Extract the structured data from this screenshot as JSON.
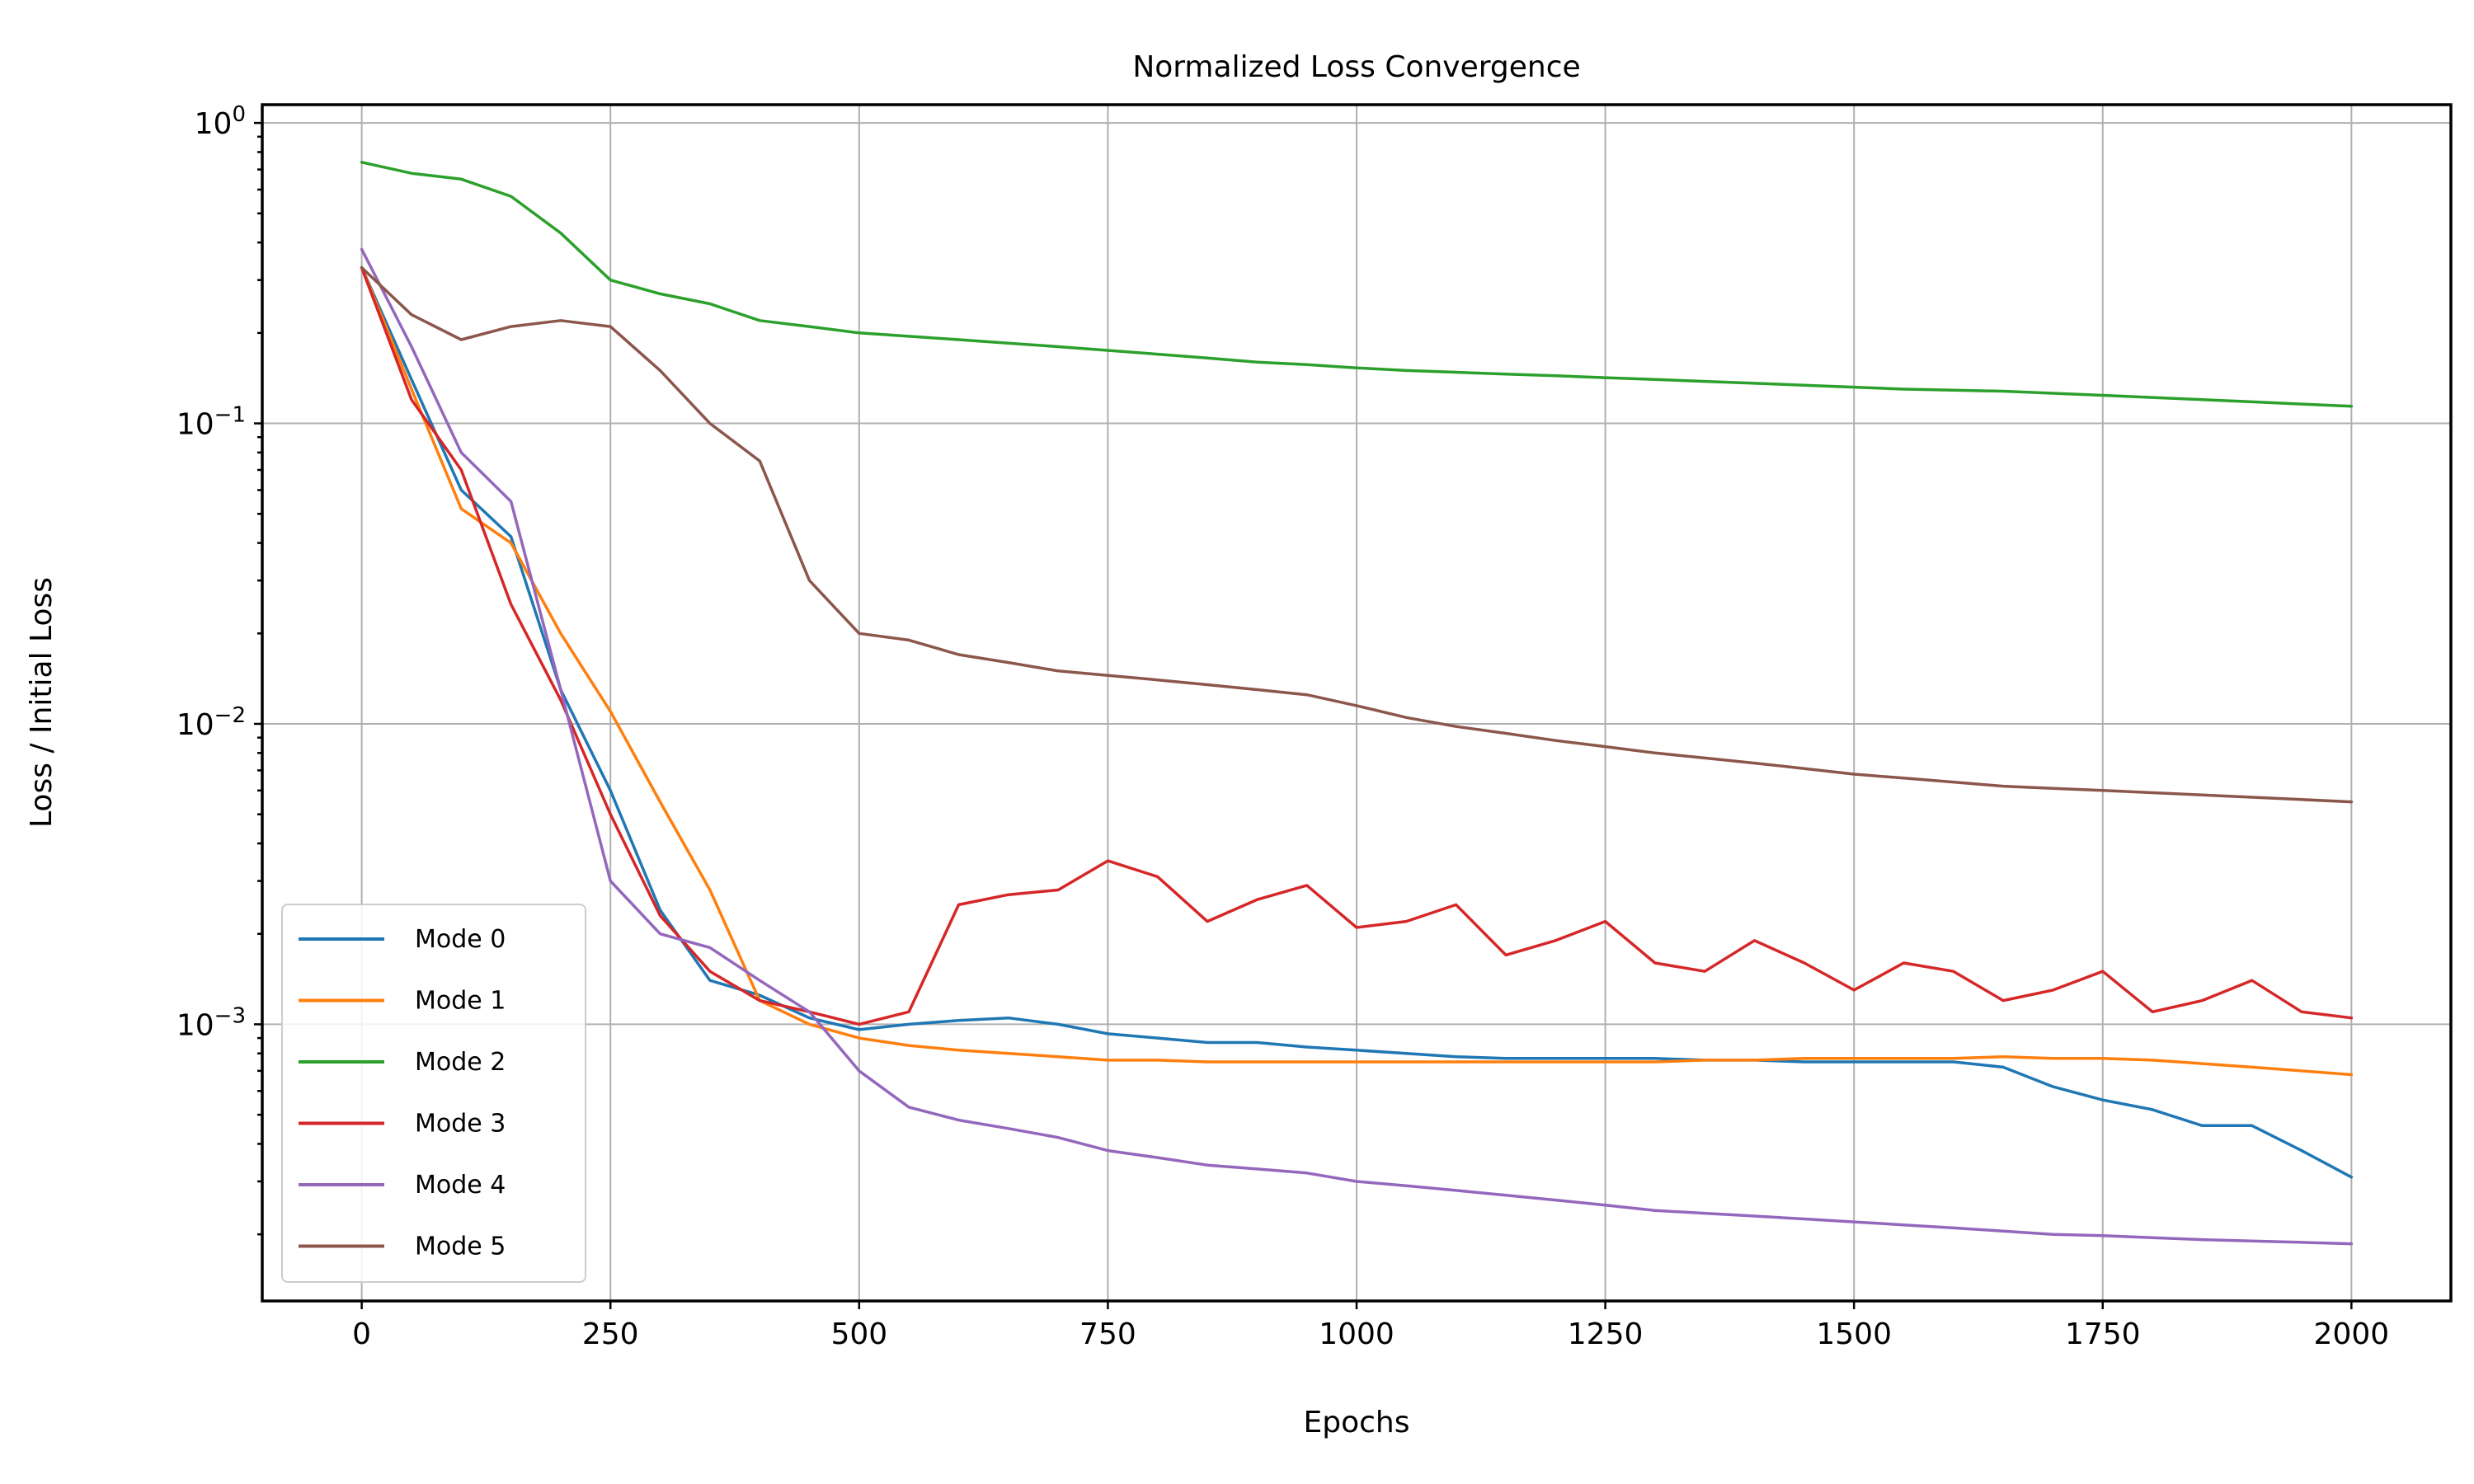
{
  "chart_data": {
    "type": "line",
    "title": "Normalized Loss Convergence",
    "xlabel": "Epochs",
    "ylabel": "Loss / Initial Loss",
    "xlim": [
      -100,
      2100
    ],
    "ylim": [
      0.00012,
      1.15
    ],
    "xscale": "linear",
    "yscale": "log",
    "grid": true,
    "legend_position": "lower-left",
    "x_ticks": [
      0,
      250,
      500,
      750,
      1000,
      1250,
      1500,
      1750,
      2000
    ],
    "x_tick_labels": [
      "0",
      "250",
      "500",
      "750",
      "1000",
      "1250",
      "1500",
      "1750",
      "2000"
    ],
    "y_ticks": [
      {
        "value": 1,
        "base": "10",
        "exp": "0"
      },
      {
        "value": 0.1,
        "base": "10",
        "exp": "−1"
      },
      {
        "value": 0.01,
        "base": "10",
        "exp": "−2"
      },
      {
        "value": 0.001,
        "base": "10",
        "exp": "−3"
      }
    ],
    "x": [
      0,
      50,
      100,
      150,
      200,
      250,
      300,
      350,
      400,
      450,
      500,
      550,
      600,
      650,
      700,
      750,
      800,
      850,
      900,
      950,
      1000,
      1050,
      1100,
      1150,
      1200,
      1250,
      1300,
      1350,
      1400,
      1450,
      1500,
      1550,
      1600,
      1650,
      1700,
      1750,
      1800,
      1850,
      1900,
      1950,
      2000
    ],
    "series": [
      {
        "name": "Mode 0",
        "color": "#1f77b4",
        "values": [
          0.33,
          0.14,
          0.06,
          0.042,
          0.013,
          0.006,
          0.0024,
          0.0014,
          0.00125,
          0.00105,
          0.00096,
          0.001,
          0.00103,
          0.00105,
          0.001,
          0.00093,
          0.0009,
          0.00087,
          0.00087,
          0.00084,
          0.00082,
          0.0008,
          0.00078,
          0.00077,
          0.00077,
          0.00077,
          0.00077,
          0.00076,
          0.00076,
          0.00075,
          0.00075,
          0.00075,
          0.00075,
          0.00072,
          0.00062,
          0.00056,
          0.00052,
          0.00046,
          0.00046,
          0.00038,
          0.00031
        ]
      },
      {
        "name": "Mode 1",
        "color": "#ff7f0e",
        "values": [
          0.33,
          0.13,
          0.052,
          0.04,
          0.02,
          0.011,
          0.0055,
          0.0028,
          0.0012,
          0.001,
          0.0009,
          0.00085,
          0.00082,
          0.0008,
          0.00078,
          0.00076,
          0.00076,
          0.00075,
          0.00075,
          0.00075,
          0.00075,
          0.00075,
          0.00075,
          0.00075,
          0.00075,
          0.00075,
          0.00075,
          0.00076,
          0.00076,
          0.00077,
          0.00077,
          0.00077,
          0.00077,
          0.00078,
          0.00077,
          0.00077,
          0.00076,
          0.00074,
          0.00072,
          0.0007,
          0.00068
        ]
      },
      {
        "name": "Mode 2",
        "color": "#2ca02c",
        "values": [
          0.74,
          0.68,
          0.65,
          0.57,
          0.43,
          0.3,
          0.27,
          0.25,
          0.22,
          0.21,
          0.2,
          0.195,
          0.19,
          0.185,
          0.18,
          0.175,
          0.17,
          0.165,
          0.16,
          0.157,
          0.153,
          0.15,
          0.148,
          0.146,
          0.144,
          0.142,
          0.14,
          0.138,
          0.136,
          0.134,
          0.132,
          0.13,
          0.129,
          0.128,
          0.126,
          0.124,
          0.122,
          0.12,
          0.118,
          0.116,
          0.114
        ]
      },
      {
        "name": "Mode 3",
        "color": "#d62728",
        "values": [
          0.33,
          0.12,
          0.07,
          0.025,
          0.012,
          0.005,
          0.0023,
          0.0015,
          0.0012,
          0.0011,
          0.001,
          0.0011,
          0.0025,
          0.0027,
          0.0028,
          0.0035,
          0.0031,
          0.0022,
          0.0026,
          0.0029,
          0.0021,
          0.0022,
          0.0025,
          0.0017,
          0.0019,
          0.0022,
          0.0016,
          0.0015,
          0.0019,
          0.0016,
          0.0013,
          0.0016,
          0.0015,
          0.0012,
          0.0013,
          0.0015,
          0.0011,
          0.0012,
          0.0014,
          0.0011,
          0.00105
        ]
      },
      {
        "name": "Mode 4",
        "color": "#9467bd",
        "values": [
          0.38,
          0.18,
          0.08,
          0.055,
          0.013,
          0.003,
          0.002,
          0.0018,
          0.0014,
          0.0011,
          0.0007,
          0.00053,
          0.00048,
          0.00045,
          0.00042,
          0.00038,
          0.00036,
          0.00034,
          0.00033,
          0.00032,
          0.0003,
          0.00029,
          0.00028,
          0.00027,
          0.00026,
          0.00025,
          0.00024,
          0.000235,
          0.00023,
          0.000225,
          0.00022,
          0.000215,
          0.00021,
          0.000205,
          0.0002,
          0.000198,
          0.000195,
          0.000192,
          0.00019,
          0.000188,
          0.000186
        ]
      },
      {
        "name": "Mode 5",
        "color": "#8c564b",
        "values": [
          0.33,
          0.23,
          0.19,
          0.21,
          0.22,
          0.21,
          0.15,
          0.1,
          0.075,
          0.03,
          0.02,
          0.019,
          0.017,
          0.016,
          0.015,
          0.0145,
          0.014,
          0.0135,
          0.013,
          0.0125,
          0.0115,
          0.0105,
          0.0098,
          0.0093,
          0.0088,
          0.0084,
          0.008,
          0.0077,
          0.0074,
          0.0071,
          0.0068,
          0.0066,
          0.0064,
          0.0062,
          0.0061,
          0.006,
          0.0059,
          0.0058,
          0.0057,
          0.0056,
          0.0055
        ]
      }
    ]
  }
}
